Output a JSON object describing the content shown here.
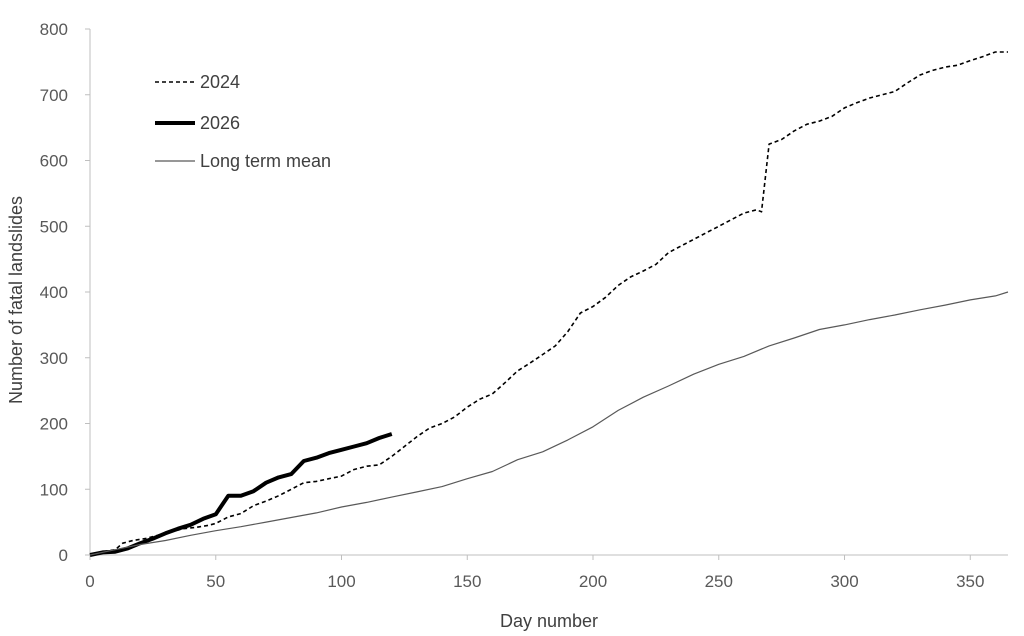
{
  "chart_data": {
    "type": "line",
    "title": "",
    "xlabel": "Day number",
    "ylabel": "Number of fatal landslides",
    "xlim": [
      0,
      365
    ],
    "ylim": [
      0,
      800
    ],
    "x_ticks": [
      0,
      50,
      100,
      150,
      200,
      250,
      300,
      350
    ],
    "y_ticks": [
      0,
      100,
      200,
      300,
      400,
      500,
      600,
      700,
      800
    ],
    "grid": false,
    "legend_position": "top-left",
    "series": [
      {
        "name": "2024",
        "style": "dashed",
        "color": "#000000",
        "points": [
          [
            0,
            0
          ],
          [
            5,
            5
          ],
          [
            10,
            8
          ],
          [
            13,
            18
          ],
          [
            17,
            22
          ],
          [
            22,
            25
          ],
          [
            27,
            30
          ],
          [
            32,
            35
          ],
          [
            37,
            40
          ],
          [
            42,
            42
          ],
          [
            47,
            45
          ],
          [
            50,
            48
          ],
          [
            55,
            58
          ],
          [
            60,
            63
          ],
          [
            65,
            75
          ],
          [
            70,
            82
          ],
          [
            75,
            90
          ],
          [
            80,
            100
          ],
          [
            85,
            110
          ],
          [
            90,
            112
          ],
          [
            95,
            116
          ],
          [
            100,
            120
          ],
          [
            105,
            130
          ],
          [
            110,
            135
          ],
          [
            115,
            137
          ],
          [
            120,
            150
          ],
          [
            125,
            165
          ],
          [
            130,
            180
          ],
          [
            135,
            193
          ],
          [
            140,
            200
          ],
          [
            145,
            210
          ],
          [
            150,
            225
          ],
          [
            155,
            237
          ],
          [
            160,
            245
          ],
          [
            165,
            262
          ],
          [
            170,
            280
          ],
          [
            175,
            292
          ],
          [
            180,
            305
          ],
          [
            185,
            318
          ],
          [
            190,
            340
          ],
          [
            195,
            368
          ],
          [
            200,
            378
          ],
          [
            205,
            392
          ],
          [
            210,
            410
          ],
          [
            215,
            423
          ],
          [
            220,
            432
          ],
          [
            225,
            442
          ],
          [
            230,
            460
          ],
          [
            235,
            470
          ],
          [
            240,
            480
          ],
          [
            245,
            490
          ],
          [
            250,
            500
          ],
          [
            255,
            510
          ],
          [
            260,
            520
          ],
          [
            265,
            525
          ],
          [
            267,
            522
          ],
          [
            270,
            625
          ],
          [
            275,
            632
          ],
          [
            280,
            645
          ],
          [
            285,
            655
          ],
          [
            290,
            660
          ],
          [
            295,
            667
          ],
          [
            300,
            680
          ],
          [
            305,
            688
          ],
          [
            310,
            695
          ],
          [
            315,
            700
          ],
          [
            320,
            705
          ],
          [
            325,
            718
          ],
          [
            330,
            730
          ],
          [
            335,
            737
          ],
          [
            340,
            742
          ],
          [
            345,
            745
          ],
          [
            350,
            752
          ],
          [
            355,
            758
          ],
          [
            360,
            765
          ],
          [
            365,
            765
          ]
        ]
      },
      {
        "name": "2026",
        "style": "solid-bold",
        "color": "#000000",
        "points": [
          [
            0,
            0
          ],
          [
            5,
            4
          ],
          [
            10,
            5
          ],
          [
            15,
            10
          ],
          [
            20,
            18
          ],
          [
            25,
            25
          ],
          [
            30,
            33
          ],
          [
            35,
            40
          ],
          [
            40,
            46
          ],
          [
            45,
            55
          ],
          [
            50,
            62
          ],
          [
            55,
            90
          ],
          [
            60,
            90
          ],
          [
            65,
            97
          ],
          [
            70,
            110
          ],
          [
            75,
            118
          ],
          [
            80,
            123
          ],
          [
            85,
            143
          ],
          [
            90,
            148
          ],
          [
            95,
            155
          ],
          [
            100,
            160
          ],
          [
            105,
            165
          ],
          [
            110,
            170
          ],
          [
            115,
            178
          ],
          [
            120,
            184
          ]
        ]
      },
      {
        "name": "Long term mean",
        "style": "solid-thin",
        "color": "#595959",
        "points": [
          [
            0,
            0
          ],
          [
            10,
            8
          ],
          [
            20,
            16
          ],
          [
            30,
            22
          ],
          [
            40,
            30
          ],
          [
            50,
            37
          ],
          [
            60,
            43
          ],
          [
            70,
            50
          ],
          [
            80,
            57
          ],
          [
            90,
            64
          ],
          [
            100,
            73
          ],
          [
            110,
            80
          ],
          [
            120,
            88
          ],
          [
            130,
            96
          ],
          [
            140,
            104
          ],
          [
            150,
            116
          ],
          [
            160,
            127
          ],
          [
            170,
            145
          ],
          [
            180,
            157
          ],
          [
            190,
            175
          ],
          [
            200,
            195
          ],
          [
            210,
            220
          ],
          [
            220,
            240
          ],
          [
            230,
            257
          ],
          [
            240,
            275
          ],
          [
            250,
            290
          ],
          [
            260,
            302
          ],
          [
            270,
            318
          ],
          [
            280,
            330
          ],
          [
            290,
            343
          ],
          [
            300,
            350
          ],
          [
            310,
            358
          ],
          [
            320,
            365
          ],
          [
            330,
            373
          ],
          [
            340,
            380
          ],
          [
            350,
            388
          ],
          [
            360,
            394
          ],
          [
            365,
            400
          ]
        ]
      }
    ]
  }
}
